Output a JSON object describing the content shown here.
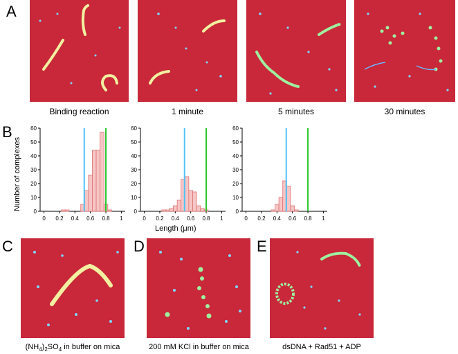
{
  "panel_labels": {
    "A": "A",
    "B": "B",
    "C": "C",
    "D": "D",
    "E": "E"
  },
  "panelA": {
    "captions": [
      "Binding reaction",
      "1 minute",
      "5 minutes",
      "30 minutes"
    ]
  },
  "panelB": {
    "ylabel": "Number of complexes",
    "xlabel": "Length (μm)",
    "y_ticks": [
      "0",
      "10",
      "20",
      "30",
      "40",
      "50",
      "60"
    ],
    "x_ticks": [
      "0",
      "0.2",
      "0.4",
      "0.6",
      "0.8",
      "1"
    ]
  },
  "panelCDE": {
    "captions": {
      "C_pre": "(NH",
      "C_sub1": "4",
      "C_mid": ")",
      "C_sub2": "2",
      "C_mid2": "SO",
      "C_sub3": "4",
      "C_post": " in buffer on mica",
      "D": "200 mM KCl in buffer on mica",
      "E": "dsDNA + Rad51 + ADP"
    }
  },
  "colors": {
    "afm_bg": "#c8283a",
    "bar_fill": "#f6c6c6",
    "bar_stroke": "#e07070",
    "blue_line": "#4fc3f7",
    "green_line": "#27c827"
  },
  "chart_data": [
    {
      "type": "bar",
      "title": "",
      "xlabel": "Length (μm)",
      "ylabel": "Number of complexes",
      "xlim": [
        -0.05,
        1.05
      ],
      "ylim": [
        0,
        60
      ],
      "bin_width": 0.05,
      "bins": [
        0.25,
        0.3,
        0.35,
        0.4,
        0.45,
        0.5,
        0.55,
        0.6,
        0.65,
        0.7,
        0.75,
        0.8,
        0.85
      ],
      "values": [
        1,
        1,
        0,
        0,
        0,
        5,
        15,
        26,
        44,
        44,
        57,
        5,
        1
      ],
      "reference_lines": [
        {
          "x": 0.52,
          "color": "blue"
        },
        {
          "x": 0.8,
          "color": "green"
        }
      ]
    },
    {
      "type": "bar",
      "title": "",
      "xlabel": "Length (μm)",
      "ylabel": "Number of complexes",
      "xlim": [
        -0.05,
        1.05
      ],
      "ylim": [
        0,
        60
      ],
      "bin_width": 0.05,
      "bins": [
        0.25,
        0.3,
        0.35,
        0.4,
        0.45,
        0.5,
        0.55,
        0.6,
        0.65,
        0.7,
        0.75,
        0.8
      ],
      "values": [
        1,
        1,
        2,
        4,
        8,
        23,
        25,
        15,
        14,
        4,
        2,
        1
      ],
      "reference_lines": [
        {
          "x": 0.52,
          "color": "blue"
        },
        {
          "x": 0.8,
          "color": "green"
        }
      ]
    },
    {
      "type": "bar",
      "title": "",
      "xlabel": "Length (μm)",
      "ylabel": "Number of complexes",
      "xlim": [
        -0.05,
        1.05
      ],
      "ylim": [
        0,
        60
      ],
      "bin_width": 0.05,
      "bins": [
        0.35,
        0.4,
        0.45,
        0.5,
        0.55,
        0.6,
        0.65
      ],
      "values": [
        1,
        5,
        10,
        22,
        18,
        4,
        1
      ],
      "reference_lines": [
        {
          "x": 0.52,
          "color": "blue"
        },
        {
          "x": 0.8,
          "color": "green"
        }
      ]
    }
  ]
}
